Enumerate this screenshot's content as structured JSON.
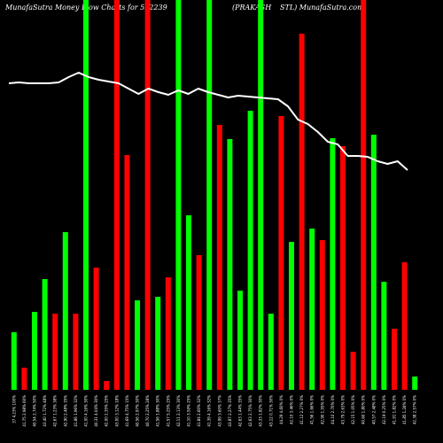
{
  "chart_data": {
    "type": "bar",
    "title_left": "MunafaSutra  Money Flow  Charts for 532239",
    "title_center": "(PRAKASH",
    "title_right": "STL) MunafaSutra.com",
    "colors": {
      "background": "#000000",
      "up": "#00ff00",
      "down": "#ff0000",
      "line": "#ffffff"
    },
    "grid": "off",
    "ylim": [
      0,
      440
    ],
    "bars": [
      {
        "dir": "up",
        "value": 65,
        "label": "37 4.23% 100%"
      },
      {
        "dir": "down",
        "value": 25,
        "label": "41.75 2.98% 60%"
      },
      {
        "dir": "up",
        "value": 88,
        "label": "40.54 2.74% 50%"
      },
      {
        "dir": "up",
        "value": 125,
        "label": "43.40 1.72% 48%"
      },
      {
        "dir": "down",
        "value": 86,
        "label": "42.67 1.23% 38%"
      },
      {
        "dir": "up",
        "value": 178,
        "label": "42.90 2.48% 35%"
      },
      {
        "dir": "down",
        "value": 86,
        "label": "41.86 1.96% 32%"
      },
      {
        "dir": "up",
        "value": 440,
        "label": "41.00 4.16% 30%"
      },
      {
        "dir": "down",
        "value": 138,
        "label": "40.31 4.04% 30%"
      },
      {
        "dir": "down",
        "value": 10,
        "label": "42.00 2.35% 25%"
      },
      {
        "dir": "down",
        "value": 440,
        "label": "43.00 3.12% 18%"
      },
      {
        "dir": "down",
        "value": 265,
        "label": "41.69 4.75% 15%"
      },
      {
        "dir": "up",
        "value": 101,
        "label": "40.56 2.97% 30%"
      },
      {
        "dir": "down",
        "value": 440,
        "label": "40.70 2.25% 28%"
      },
      {
        "dir": "up",
        "value": 105,
        "label": "41.56 1.88% 30%"
      },
      {
        "dir": "down",
        "value": 127,
        "label": "41.57 5.25% 25%"
      },
      {
        "dir": "up",
        "value": 440,
        "label": "42.11 2.13% 30%"
      },
      {
        "dir": "up",
        "value": 197,
        "label": "41.10 3.59% 25%"
      },
      {
        "dir": "down",
        "value": 152,
        "label": "41.84 2.60% 32%"
      },
      {
        "dir": "up",
        "value": 440,
        "label": "41.39 4.16% 32%"
      },
      {
        "dir": "down",
        "value": 299,
        "label": "43.99 3.60% 37%"
      },
      {
        "dir": "up",
        "value": 283,
        "label": "43.87 2.27% 35%"
      },
      {
        "dir": "up",
        "value": 112,
        "label": "42.63 1.44% 35%"
      },
      {
        "dir": "up",
        "value": 315,
        "label": "42.63 2.75% 30%"
      },
      {
        "dir": "up",
        "value": 440,
        "label": "43.33 1.82% 30%"
      },
      {
        "dir": "up",
        "value": 86,
        "label": "43.12 0.71% 30%"
      },
      {
        "dir": "down",
        "value": 309,
        "label": "44.29 4.60% 0%"
      },
      {
        "dir": "up",
        "value": 167,
        "label": "42.10 3.46% 0%"
      },
      {
        "dir": "down",
        "value": 402,
        "label": "41.12 2.27% 0%"
      },
      {
        "dir": "up",
        "value": 182,
        "label": "41.56 1.66% 0%"
      },
      {
        "dir": "down",
        "value": 169,
        "label": "42.90 1.55% 0%"
      },
      {
        "dir": "up",
        "value": 284,
        "label": "44.10 2.70% 0%"
      },
      {
        "dir": "down",
        "value": 275,
        "label": "43.79 2.63% 0%"
      },
      {
        "dir": "down",
        "value": 43,
        "label": "42.15 1.05% 0%"
      },
      {
        "dir": "down",
        "value": 440,
        "label": "40.60 1.80% 0%"
      },
      {
        "dir": "up",
        "value": 288,
        "label": "40.57 2.48% 0%"
      },
      {
        "dir": "up",
        "value": 122,
        "label": "42.19 0.25% 0%"
      },
      {
        "dir": "down",
        "value": 69,
        "label": "41.91 1.82% 0%"
      },
      {
        "dir": "down",
        "value": 144,
        "label": "41.85 1.28% 0%"
      },
      {
        "dir": "up",
        "value": 15,
        "label": "42.38 2.57% 0%"
      }
    ],
    "line": [
      346,
      347,
      346,
      346,
      346,
      347,
      353,
      358,
      353,
      350,
      348,
      346,
      340,
      334,
      340,
      336,
      333,
      338,
      334,
      340,
      336,
      333,
      330,
      332,
      331,
      330,
      329,
      328,
      320,
      305,
      300,
      291,
      280,
      277,
      264,
      264,
      263,
      258,
      255,
      258,
      248
    ]
  }
}
